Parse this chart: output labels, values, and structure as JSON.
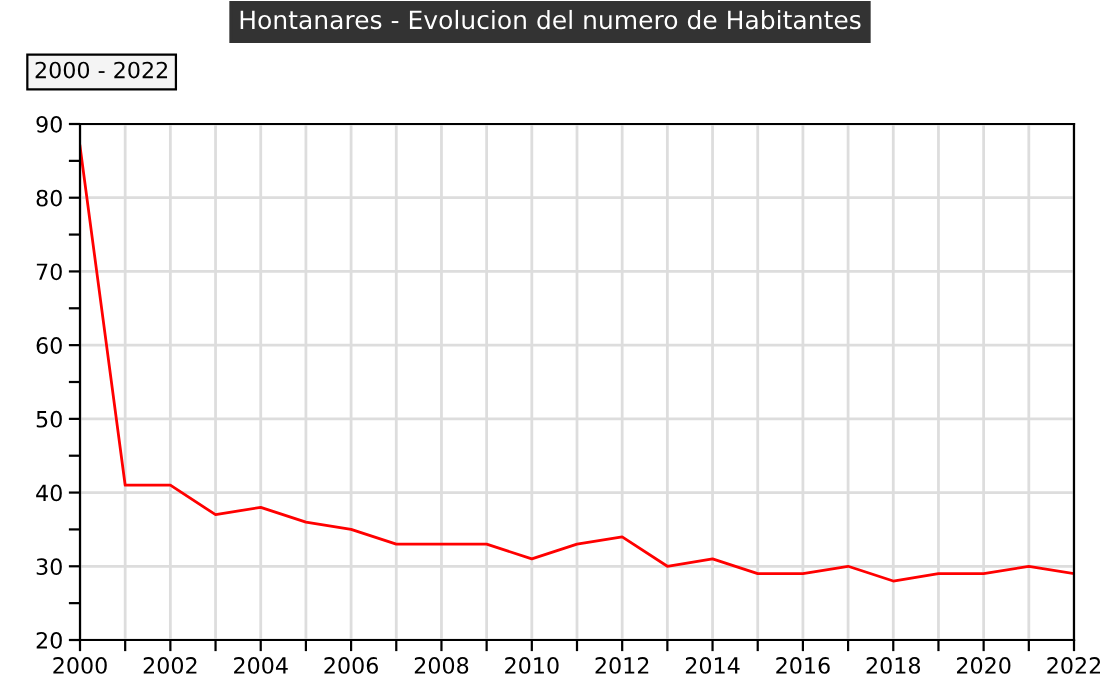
{
  "chart_data": {
    "type": "line",
    "title": "Hontanares - Evolucion del numero de Habitantes",
    "annotations": [
      "2000 - 2022"
    ],
    "x": [
      2000,
      2001,
      2002,
      2003,
      2004,
      2005,
      2006,
      2007,
      2008,
      2009,
      2010,
      2011,
      2012,
      2013,
      2014,
      2015,
      2016,
      2017,
      2018,
      2019,
      2020,
      2021,
      2022
    ],
    "series": [
      {
        "color": "#ff0000",
        "values": [
          87,
          41,
          41,
          37,
          38,
          36,
          35,
          33,
          33,
          33,
          31,
          33,
          34,
          30,
          31,
          29,
          29,
          30,
          28,
          29,
          29,
          30,
          29
        ]
      }
    ],
    "xlim": [
      2000,
      2022
    ],
    "xticks": [
      2000,
      {
        "value": 2001,
        "label": null
      },
      2002,
      {
        "value": 2003,
        "label": null
      },
      2004,
      {
        "value": 2005,
        "label": null
      },
      2006,
      {
        "value": 2007,
        "label": null
      },
      2008,
      {
        "value": 2009,
        "label": null
      },
      2010,
      {
        "value": 2011,
        "label": null
      },
      2012,
      {
        "value": 2013,
        "label": null
      },
      2014,
      {
        "value": 2015,
        "label": null
      },
      2016,
      {
        "value": 2017,
        "label": null
      },
      2018,
      {
        "value": 2019,
        "label": null
      },
      2020,
      {
        "value": 2021,
        "label": null
      },
      2022
    ],
    "ylim": [
      20,
      90
    ],
    "yticks": [
      20,
      {
        "value": 25,
        "label": null
      },
      30,
      {
        "value": 35,
        "label": null
      },
      40,
      {
        "value": 45,
        "label": null
      },
      50,
      {
        "value": 55,
        "label": null
      },
      60,
      {
        "value": 65,
        "label": null
      },
      70,
      {
        "value": 75,
        "label": null
      },
      80,
      {
        "value": 85,
        "label": null
      },
      90
    ],
    "grid": true,
    "legend": false,
    "marker": "none",
    "line_style": "solid"
  }
}
